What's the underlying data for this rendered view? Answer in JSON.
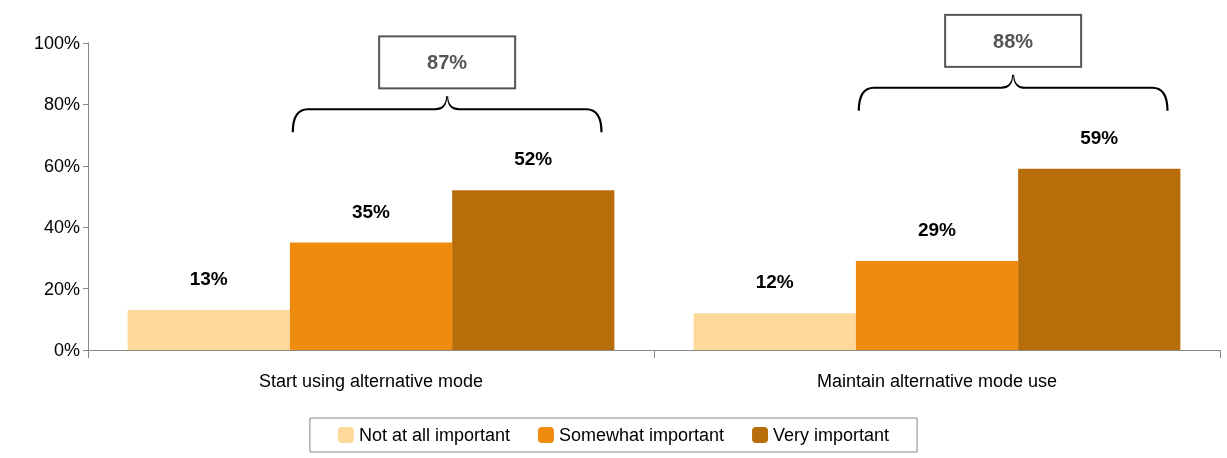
{
  "chart_data": {
    "type": "bar",
    "categories": [
      "Start using alternative mode",
      "Maintain alternative mode use"
    ],
    "series": [
      {
        "name": "Not at all important",
        "color": "#fdd99b",
        "values": [
          13,
          12
        ],
        "value_labels": [
          "13%",
          "12%"
        ]
      },
      {
        "name": "Somewhat important",
        "color": "#ef8c0e",
        "values": [
          35,
          29
        ],
        "value_labels": [
          "35%",
          "29%"
        ]
      },
      {
        "name": "Very important",
        "color": "#b76d0a",
        "values": [
          52,
          59
        ],
        "value_labels": [
          "52%",
          "59%"
        ]
      }
    ],
    "ylim": [
      0,
      100
    ],
    "yticks": [
      {
        "value": 0,
        "label": "0%"
      },
      {
        "value": 20,
        "label": "20%"
      },
      {
        "value": 40,
        "label": "40%"
      },
      {
        "value": 60,
        "label": "60%"
      },
      {
        "value": 80,
        "label": "80%"
      },
      {
        "value": 100,
        "label": "100%"
      }
    ],
    "grid": false,
    "legend": "bottom",
    "annotations": [
      "87%",
      "88%"
    ]
  }
}
